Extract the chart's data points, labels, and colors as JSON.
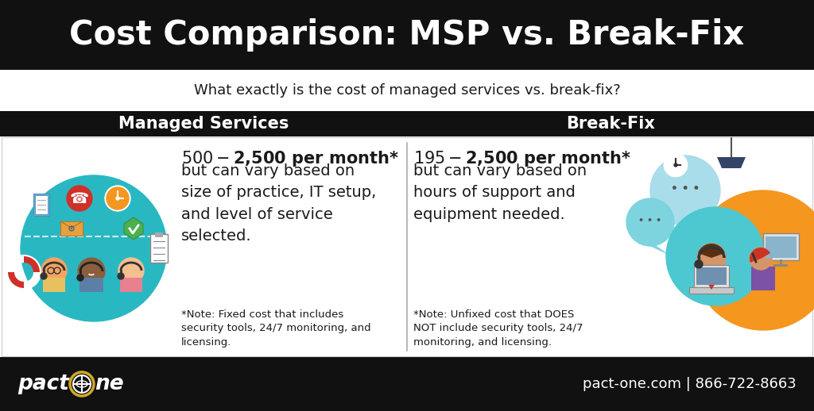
{
  "title": "Cost Comparison: MSP vs. Break-Fix",
  "subtitle": "What exactly is the cost of managed services vs. break-fix?",
  "col1_header": "Managed Services",
  "col2_header": "Break-Fix",
  "col1_price_bold": "$500-$2,500 per month*",
  "col1_price_body": "but can vary based on\nsize of practice, IT setup,\nand level of service\nselected.",
  "col1_note": "*Note: Fixed cost that includes\nsecurity tools, 24/7 monitoring, and\nlicensing.",
  "col2_price_bold": "$195-$2,500 per month*",
  "col2_price_body": "but can vary based on\nhours of support and\nequipment needed.",
  "col2_note": "*Note: Unfixed cost that DOES\nNOT include security tools, 24/7\nmonitoring, and licensing.",
  "footer_right": "pact-one.com | 866-722-8663",
  "bg_black": "#111111",
  "bg_white": "#ffffff",
  "accent_teal": "#29b8c2",
  "accent_teal2": "#4dc8d0",
  "accent_orange": "#f5961e",
  "accent_lightblue": "#a8dde9",
  "accent_red": "#d0302a",
  "text_dark": "#1a1a1a",
  "text_white": "#ffffff",
  "divider_color": "#aaaaaa",
  "title_fontsize": 30,
  "subtitle_fontsize": 13,
  "header_fontsize": 15,
  "price_bold_fontsize": 15,
  "price_body_fontsize": 14,
  "note_fontsize": 9.5,
  "footer_fontsize": 13
}
